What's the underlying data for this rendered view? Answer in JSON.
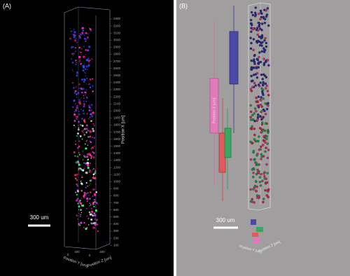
{
  "panels": [
    {
      "label": "(A)",
      "scale_bar": "300 um",
      "axis_x": "Position X [um]",
      "axis_y": "Position Y [um]",
      "axis_z": "Position Z [um]",
      "ticks": [
        "3300",
        "3200",
        "3100",
        "3000",
        "2900",
        "2800",
        "2700",
        "2600",
        "2500",
        "2400",
        "2300",
        "2200",
        "2100",
        "2000",
        "1900",
        "1800",
        "1700",
        "1600",
        "1500",
        "1400",
        "1300",
        "1200",
        "1100",
        "1000",
        "900",
        "800",
        "700",
        "600",
        "500",
        "400",
        "300",
        "200",
        "100"
      ],
      "base_ticks": [
        "0",
        "400",
        "0",
        "400"
      ]
    },
    {
      "label": "(B)",
      "scale_bar": "300 um",
      "axis_x": "Position X [um]",
      "axis_y": "Position Y [um]",
      "axis_z": "Position Z [um]"
    }
  ]
}
